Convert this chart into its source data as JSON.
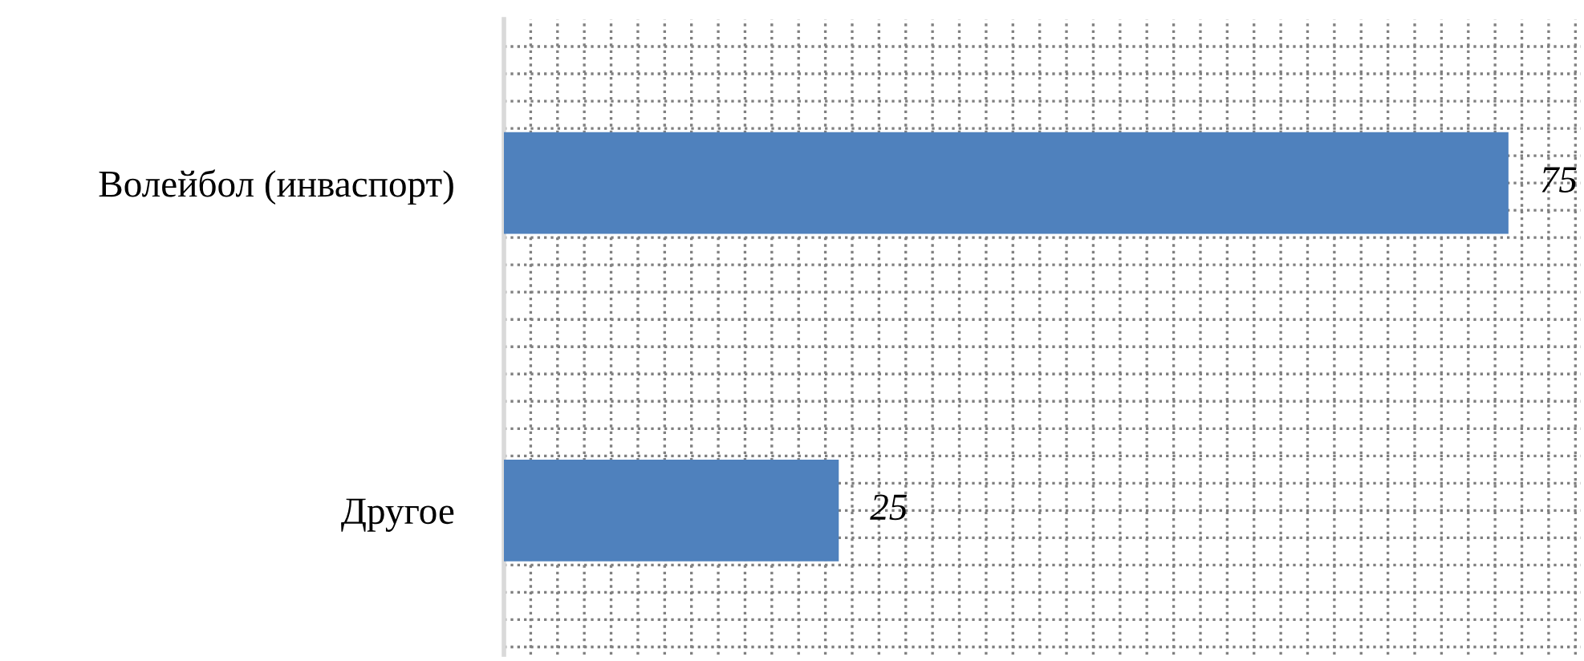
{
  "chart_data": {
    "type": "bar",
    "orientation": "horizontal",
    "categories": [
      "Волейбол (инваспорт)",
      "Другое"
    ],
    "values": [
      75,
      25
    ],
    "color": "#4f81bd",
    "data_labels": true,
    "grid": true,
    "xlim": [
      0,
      80.4
    ],
    "xticks": [
      {
        "value": 0,
        "label": null
      },
      {
        "value": 2,
        "label": null
      },
      {
        "value": 4,
        "label": null
      },
      {
        "value": 6,
        "label": null
      },
      {
        "value": 8,
        "label": null
      },
      {
        "value": 10,
        "label": null
      },
      {
        "value": 12,
        "label": null
      },
      {
        "value": 14,
        "label": null
      },
      {
        "value": 16,
        "label": null
      },
      {
        "value": 18,
        "label": null
      },
      {
        "value": 20,
        "label": null
      },
      {
        "value": 22,
        "label": null
      },
      {
        "value": 24,
        "label": null
      },
      {
        "value": 26,
        "label": null
      },
      {
        "value": 28,
        "label": null
      },
      {
        "value": 30,
        "label": null
      },
      {
        "value": 32,
        "label": null
      },
      {
        "value": 34,
        "label": null
      },
      {
        "value": 36,
        "label": null
      },
      {
        "value": 38,
        "label": null
      },
      {
        "value": 40,
        "label": null
      },
      {
        "value": 42,
        "label": null
      },
      {
        "value": 44,
        "label": null
      },
      {
        "value": 46,
        "label": null
      },
      {
        "value": 48,
        "label": null
      },
      {
        "value": 50,
        "label": null
      },
      {
        "value": 52,
        "label": null
      },
      {
        "value": 54,
        "label": null
      },
      {
        "value": 56,
        "label": null
      },
      {
        "value": 58,
        "label": null
      },
      {
        "value": 60,
        "label": null
      },
      {
        "value": 62,
        "label": null
      },
      {
        "value": 64,
        "label": null
      },
      {
        "value": 66,
        "label": null
      },
      {
        "value": 68,
        "label": null
      },
      {
        "value": 70,
        "label": null
      },
      {
        "value": 72,
        "label": null
      },
      {
        "value": 74,
        "label": null
      },
      {
        "value": 76,
        "label": null
      },
      {
        "value": 78,
        "label": null
      },
      {
        "value": 80,
        "label": null
      }
    ],
    "tick_labels": "y"
  }
}
